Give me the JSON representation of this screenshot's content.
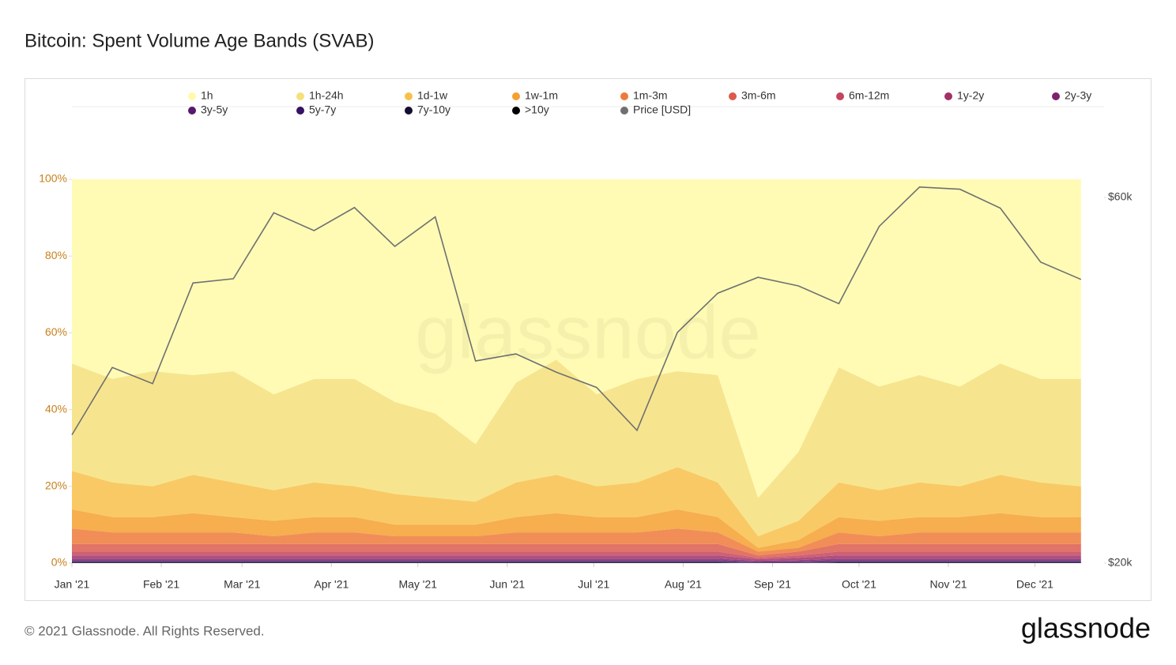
{
  "chart_data": {
    "type": "stacked-area",
    "title": "Bitcoin: Spent Volume Age Bands (SVAB)",
    "footer": "© 2021 Glassnode. All Rights Reserved.",
    "logo": "glassnode",
    "watermark": "glassnode",
    "x": [
      0,
      14,
      28,
      42,
      56,
      70,
      84,
      98,
      112,
      126,
      140,
      154,
      168,
      182,
      196,
      210,
      224,
      238,
      252,
      266,
      280,
      294,
      308,
      322,
      336,
      350
    ],
    "xlim": [
      0,
      358
    ],
    "xticks": [
      {
        "value": 0,
        "label": "Jan '21"
      },
      {
        "value": 31,
        "label": "Feb '21"
      },
      {
        "value": 59,
        "label": "Mar '21"
      },
      {
        "value": 90,
        "label": "Apr '21"
      },
      {
        "value": 120,
        "label": "May '21"
      },
      {
        "value": 151,
        "label": "Jun '21"
      },
      {
        "value": 181,
        "label": "Jul '21"
      },
      {
        "value": 212,
        "label": "Aug '21"
      },
      {
        "value": 243,
        "label": "Sep '21"
      },
      {
        "value": 273,
        "label": "Oct '21"
      },
      {
        "value": 304,
        "label": "Nov '21"
      },
      {
        "value": 334,
        "label": "Dec '21"
      }
    ],
    "ylim": [
      0,
      100
    ],
    "yticks": [
      {
        "value": 0,
        "label": "0%"
      },
      {
        "value": 20,
        "label": "20%"
      },
      {
        "value": 40,
        "label": "40%"
      },
      {
        "value": 60,
        "label": "60%"
      },
      {
        "value": 80,
        "label": "80%"
      },
      {
        "value": 100,
        "label": "100%"
      }
    ],
    "y2lim": [
      20000,
      63360
    ],
    "y2log": true,
    "y2ticks": [
      {
        "value": 20000,
        "label": "$20k"
      },
      {
        "value": 60000,
        "label": "$60k"
      }
    ],
    "series": [
      {
        "name": "1h",
        "color": "#fffaa8",
        "values": [
          48,
          52,
          50,
          51,
          50,
          56,
          52,
          52,
          58,
          61,
          69,
          53,
          47,
          56,
          52,
          50,
          51,
          83,
          71,
          49,
          54,
          51,
          54,
          48,
          52,
          52
        ]
      },
      {
        "name": "1h-24h",
        "color": "#f5e07a",
        "values": [
          28,
          27,
          30,
          26,
          29,
          25,
          27,
          28,
          24,
          22,
          15,
          26,
          30,
          24,
          27,
          25,
          28,
          10,
          18,
          30,
          27,
          28,
          26,
          29,
          27,
          28
        ]
      },
      {
        "name": "1d-1w",
        "color": "#f8c04a",
        "values": [
          10,
          9,
          8,
          10,
          9,
          8,
          9,
          8,
          8,
          7,
          6,
          9,
          10,
          8,
          9,
          11,
          9,
          3,
          5,
          9,
          8,
          9,
          8,
          10,
          9,
          8
        ]
      },
      {
        "name": "1w-1m",
        "color": "#f5a030",
        "values": [
          5,
          4,
          4,
          5,
          4,
          4,
          4,
          4,
          3,
          3,
          3,
          4,
          5,
          4,
          4,
          5,
          4,
          1,
          2,
          4,
          4,
          4,
          4,
          5,
          4,
          4
        ]
      },
      {
        "name": "1m-3m",
        "color": "#ee7a3a",
        "values": [
          4,
          3,
          3,
          3,
          3,
          2,
          3,
          3,
          2,
          2,
          2,
          3,
          3,
          3,
          3,
          4,
          3,
          1,
          1,
          3,
          2,
          3,
          3,
          3,
          3,
          3
        ]
      },
      {
        "name": "3m-6m",
        "color": "#dc5a4c",
        "values": [
          2,
          2,
          2,
          2,
          2,
          2,
          2,
          2,
          2,
          2,
          2,
          2,
          2,
          2,
          2,
          2,
          2,
          0.6,
          1,
          2,
          2,
          2,
          2,
          2,
          2,
          2
        ]
      },
      {
        "name": "6m-12m",
        "color": "#c4455e",
        "values": [
          1,
          1,
          1,
          1,
          1,
          1,
          1,
          1,
          1,
          1,
          1,
          1,
          1,
          1,
          1,
          1,
          1,
          0.4,
          0.6,
          1,
          1,
          1,
          1,
          1,
          1,
          1
        ]
      },
      {
        "name": "1y-2y",
        "color": "#a33066",
        "values": [
          0.8,
          0.8,
          0.8,
          0.8,
          0.8,
          0.8,
          0.8,
          0.8,
          0.8,
          0.8,
          0.8,
          0.8,
          0.8,
          0.8,
          0.8,
          0.8,
          0.8,
          0.4,
          0.6,
          0.8,
          0.8,
          0.8,
          0.8,
          0.8,
          0.8,
          0.8
        ]
      },
      {
        "name": "2y-3y",
        "color": "#7d226e",
        "values": [
          0.4,
          0.4,
          0.4,
          0.4,
          0.4,
          0.4,
          0.4,
          0.4,
          0.4,
          0.4,
          0.4,
          0.4,
          0.4,
          0.4,
          0.4,
          0.4,
          0.4,
          0.2,
          0.3,
          0.4,
          0.4,
          0.4,
          0.4,
          0.4,
          0.4,
          0.4
        ]
      },
      {
        "name": "3y-5y",
        "color": "#58186c",
        "values": [
          0.4,
          0.4,
          0.4,
          0.4,
          0.4,
          0.4,
          0.4,
          0.4,
          0.4,
          0.4,
          0.4,
          0.4,
          0.4,
          0.4,
          0.4,
          0.4,
          0.4,
          0.2,
          0.3,
          0.4,
          0.4,
          0.4,
          0.4,
          0.4,
          0.4,
          0.4
        ]
      },
      {
        "name": "5y-7y",
        "color": "#361262",
        "values": [
          0.2,
          0.2,
          0.2,
          0.2,
          0.2,
          0.2,
          0.2,
          0.2,
          0.2,
          0.2,
          0.2,
          0.2,
          0.2,
          0.2,
          0.2,
          0.2,
          0.2,
          0.1,
          0.1,
          0.2,
          0.2,
          0.2,
          0.2,
          0.2,
          0.2,
          0.2
        ]
      },
      {
        "name": "7y-10y",
        "color": "#160d32",
        "values": [
          0.1,
          0.1,
          0.1,
          0.1,
          0.1,
          0.1,
          0.1,
          0.1,
          0.1,
          0.1,
          0.1,
          0.1,
          0.1,
          0.1,
          0.1,
          0.1,
          0.1,
          0.05,
          0.05,
          0.1,
          0.1,
          0.1,
          0.1,
          0.1,
          0.1,
          0.1
        ]
      },
      {
        "name": ">10y",
        "color": "#000000",
        "values": [
          0.1,
          0.1,
          0.1,
          0.1,
          0.1,
          0.1,
          0.1,
          0.1,
          0.1,
          0.1,
          0.1,
          0.1,
          0.1,
          0.1,
          0.1,
          0.1,
          0.1,
          0.05,
          0.05,
          0.1,
          0.1,
          0.1,
          0.1,
          0.1,
          0.1,
          0.1
        ]
      },
      {
        "name": "Price [USD]",
        "color": "#707070",
        "axis": "y2",
        "line": true,
        "values": [
          29400,
          36000,
          34300,
          46400,
          47000,
          57300,
          54300,
          58200,
          51800,
          56600,
          36700,
          37500,
          35500,
          33900,
          29800,
          40000,
          45000,
          47200,
          46000,
          43600,
          55000,
          61900,
          61500,
          58100,
          49400,
          46900
        ]
      }
    ]
  }
}
